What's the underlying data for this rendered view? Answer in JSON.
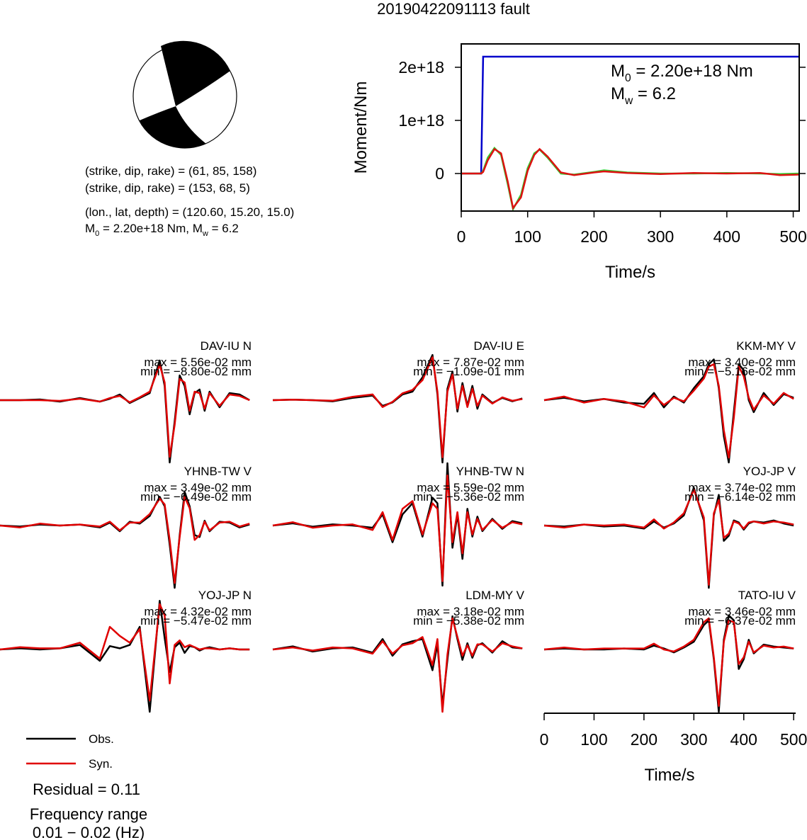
{
  "title": "20190422091113 fault",
  "mechanism": {
    "plane1": "(strike, dip, rake) = (61, 85, 158)",
    "plane2": "(strike, dip, rake) = (153, 68, 5)",
    "location": "(lon., lat, depth) = (120.60, 15.20, 15.0)",
    "magnitude": [
      {
        "symbol": "M",
        "sub": "0",
        "text": " = 2.20e+18 Nm, "
      },
      {
        "symbol": "M",
        "sub": "w",
        "text": " = 6.2"
      }
    ]
  },
  "chart_data": [
    {
      "type": "line",
      "xlabel": "Time/s",
      "ylabel": "Moment/Nm",
      "xlim": [
        0,
        509
      ],
      "xticks": [
        0,
        100,
        200,
        300,
        400,
        500
      ],
      "ylim": [
        -7.07e+17,
        2.44e+18
      ],
      "yticks": [
        0,
        {
          "value": 1e+18,
          "label": "1e+18"
        },
        {
          "value": 2e+18,
          "label": "2e+18"
        }
      ],
      "annotations": [
        {
          "symbol": "M",
          "sub": "0",
          "text": " = 2.20e+18 Nm"
        },
        {
          "symbol": "M",
          "sub": "w",
          "text": " = 6.2"
        }
      ],
      "x": [
        0,
        30,
        33,
        40,
        50,
        60,
        70,
        78,
        90,
        100,
        110,
        118,
        130,
        150,
        170,
        200,
        215,
        250,
        300,
        350,
        400,
        450,
        480,
        509
      ],
      "series": [
        {
          "color": "#0000cc",
          "values": [
            0,
            0,
            2.2e+18,
            2.2e+18,
            2.2e+18,
            2.2e+18,
            2.2e+18,
            2.2e+18,
            2.2e+18,
            2.2e+18,
            2.2e+18,
            2.2e+18,
            2.2e+18,
            2.2e+18,
            2.2e+18,
            2.2e+18,
            2.2e+18,
            2.2e+18,
            2.2e+18,
            2.2e+18,
            2.2e+18,
            2.2e+18,
            2.2e+18,
            2.2e+18
          ]
        },
        {
          "color": "#33cc33",
          "values": [
            0,
            0,
            5e+16,
            3e+17,
            4.8e+17,
            3.5e+17,
            -2e+17,
            -6.7e+17,
            -4e+17,
            1e+17,
            3.8e+17,
            4.5e+17,
            3e+17,
            0,
            -2e+16,
            3e+16,
            6e+16,
            2e+16,
            0,
            0,
            1e+16,
            0,
            -1e+16,
            0
          ]
        },
        {
          "color": "#dd1111",
          "values": [
            0,
            0,
            3e+16,
            2.5e+17,
            4.6e+17,
            3.8e+17,
            -1.5e+17,
            -6.5e+17,
            -4.5e+17,
            5e+16,
            3.5e+17,
            4.6e+17,
            3.2e+17,
            2e+16,
            -3e+16,
            2e+16,
            4e+16,
            1e+16,
            -1e+16,
            1e+16,
            0,
            1e+16,
            -3e+16,
            -2e+16
          ]
        }
      ]
    },
    {
      "type": "waveform",
      "xlabel": "Time/s",
      "xlim": [
        0,
        504
      ],
      "xticks": [
        0,
        100,
        200,
        300,
        400,
        500
      ],
      "x": [
        0,
        40,
        80,
        120,
        160,
        200,
        220,
        240,
        260,
        280,
        300,
        320,
        330,
        340,
        350,
        360,
        370,
        380,
        390,
        400,
        410,
        420,
        440,
        460,
        480,
        500
      ],
      "panels": [
        {
          "title": "DAV-IU N",
          "max_label": "max = 5.56e-02 mm",
          "min_label": "min = −8.80e-02 mm",
          "series": [
            {
              "name": "Obs.",
              "color": "#000000",
              "values": [
                0,
                0,
                0.001,
                -0.002,
                0.003,
                -0.002,
                0.002,
                0.008,
                -0.004,
                0.003,
                0.01,
                0.056,
                0.02,
                -0.088,
                -0.03,
                0.035,
                0.02,
                -0.02,
                0.01,
                0.015,
                -0.015,
                0.012,
                -0.01,
                0.01,
                0.008,
                0
              ]
            },
            {
              "name": "Syn.",
              "color": "#e00000",
              "values": [
                0,
                0,
                0,
                -0.001,
                0.002,
                -0.002,
                0.003,
                0.006,
                -0.003,
                0.004,
                0.012,
                0.05,
                0.025,
                -0.08,
                -0.035,
                0.03,
                0.025,
                -0.015,
                0.012,
                0.01,
                -0.012,
                0.01,
                -0.008,
                0.008,
                0.006,
                0
              ]
            }
          ]
        },
        {
          "title": "DAV-IU E",
          "max_label": "max = 7.87e-02 mm",
          "min_label": "min = −1.09e-01 mm",
          "series": [
            {
              "name": "Obs.",
              "color": "#000000",
              "values": [
                0,
                0.001,
                0,
                -0.002,
                0.004,
                0.008,
                -0.01,
                -0.004,
                0.01,
                0.015,
                0.04,
                0.079,
                0.01,
                -0.109,
                0.02,
                0.05,
                -0.02,
                0.03,
                -0.01,
                0.025,
                -0.015,
                0.01,
                -0.005,
                0.004,
                -0.002,
                0.003
              ]
            },
            {
              "name": "Syn.",
              "color": "#e00000",
              "values": [
                0,
                0.001,
                0,
                -0.001,
                0.006,
                0.01,
                -0.012,
                -0.003,
                0.012,
                0.018,
                0.035,
                0.075,
                0.015,
                -0.1,
                0.015,
                0.045,
                -0.015,
                0.025,
                -0.012,
                0.02,
                -0.01,
                0.008,
                -0.006,
                0.005,
                -0.001,
                0.002
              ]
            }
          ]
        },
        {
          "title": "KKM-MY V",
          "max_label": "max = 3.40e-02 mm",
          "min_label": "min = −5.16e-02 mm",
          "series": [
            {
              "name": "Obs.",
              "color": "#000000",
              "values": [
                0,
                0.002,
                -0.001,
                0.001,
                -0.002,
                -0.003,
                0.006,
                -0.006,
                0.003,
                -0.002,
                0.01,
                0.02,
                0.03,
                0.034,
                0.01,
                -0.03,
                -0.052,
                -0.01,
                0.03,
                0.025,
                0,
                -0.01,
                0.006,
                -0.004,
                0.005,
                0.002
              ]
            },
            {
              "name": "Syn.",
              "color": "#e00000",
              "values": [
                0,
                0.003,
                -0.002,
                0.001,
                -0.001,
                -0.006,
                0.004,
                -0.004,
                0.002,
                -0.001,
                0.008,
                0.018,
                0.028,
                0.03,
                0.012,
                -0.025,
                -0.048,
                -0.015,
                0.028,
                0.02,
                0.002,
                -0.008,
                0.004,
                -0.003,
                0.006,
                0.001
              ]
            }
          ]
        },
        {
          "title": "YHNB-TW V",
          "max_label": "max = 3.49e-02 mm",
          "min_label": "min = −6.49e-02 mm",
          "series": [
            {
              "name": "Obs.",
              "color": "#000000",
              "values": [
                0,
                -0.001,
                0.001,
                0,
                0.001,
                -0.002,
                0.003,
                -0.006,
                0.004,
                0.002,
                0.01,
                0.03,
                0.02,
                -0.02,
                -0.065,
                -0.01,
                0.035,
                0.02,
                -0.01,
                -0.012,
                0.005,
                -0.006,
                0.004,
                0.003,
                -0.002,
                0.001
              ]
            },
            {
              "name": "Syn.",
              "color": "#e00000",
              "values": [
                0,
                -0.002,
                0.002,
                0,
                0.001,
                -0.001,
                0.004,
                -0.005,
                0.003,
                0.003,
                0.012,
                0.028,
                0.022,
                -0.015,
                -0.06,
                -0.012,
                0.03,
                0.018,
                -0.015,
                -0.01,
                0.004,
                -0.005,
                0.003,
                0.004,
                -0.001,
                0.002
              ]
            }
          ]
        },
        {
          "title": "YHNB-TW N",
          "max_label": "max = 5.59e-02 mm",
          "min_label": "min = −5.36e-02 mm",
          "series": [
            {
              "name": "Obs.",
              "color": "#000000",
              "values": [
                0,
                0.002,
                -0.001,
                0.001,
                0,
                -0.002,
                0.01,
                -0.015,
                0.01,
                0.02,
                -0.01,
                0.025,
                0.02,
                -0.054,
                0.056,
                -0.02,
                0.01,
                -0.03,
                0.015,
                -0.01,
                0.008,
                -0.005,
                0.006,
                -0.003,
                0.004,
                0.002
              ]
            },
            {
              "name": "Syn.",
              "color": "#e00000",
              "values": [
                0,
                0.003,
                -0.002,
                0,
                0.001,
                -0.004,
                0.012,
                -0.013,
                0.015,
                0.022,
                -0.008,
                0.02,
                0.015,
                -0.05,
                0.045,
                -0.015,
                0.012,
                -0.025,
                0.012,
                -0.008,
                0.006,
                -0.004,
                0.005,
                -0.002,
                0.003,
                0.001
              ]
            }
          ]
        },
        {
          "title": "YOJ-JP V",
          "max_label": "max = 3.74e-02 mm",
          "min_label": "min = −6.14e-02 mm",
          "series": [
            {
              "name": "Obs.",
              "color": "#000000",
              "values": [
                0,
                -0.001,
                0.001,
                -0.001,
                0,
                -0.003,
                0.004,
                -0.002,
                0.002,
                0.01,
                0.037,
                0.005,
                -0.061,
                0.01,
                0.03,
                -0.015,
                -0.01,
                0.005,
                0.003,
                -0.004,
                0.002,
                0.004,
                0.003,
                0.005,
                0.002,
                0
              ]
            },
            {
              "name": "Syn.",
              "color": "#e00000",
              "values": [
                0,
                -0.002,
                0.001,
                0,
                0.001,
                -0.002,
                0.006,
                -0.003,
                0.003,
                0.012,
                0.035,
                0.008,
                -0.058,
                0.012,
                0.025,
                -0.012,
                -0.008,
                0.004,
                0.002,
                -0.003,
                0.003,
                0.004,
                0.002,
                0.004,
                0.003,
                0.001
              ]
            }
          ]
        },
        {
          "title": "YOJ-JP N",
          "max_label": "max = 4.32e-02 mm",
          "min_label": "min = −5.47e-02 mm",
          "series": [
            {
              "name": "Obs.",
              "color": "#000000",
              "values": [
                0,
                0.001,
                0,
                0.001,
                0.004,
                -0.01,
                0.003,
                0.001,
                0.004,
                0.02,
                -0.055,
                0.043,
                0.01,
                -0.02,
                0.002,
                0.006,
                -0.003,
                0.003,
                0.002,
                -0.001,
                0.001,
                0.002,
                0,
                0.001,
                0,
                0
              ]
            },
            {
              "name": "Syn.",
              "color": "#e00000",
              "values": [
                0,
                0.002,
                0.001,
                0.001,
                0.006,
                -0.008,
                0.02,
                0.012,
                0.006,
                0.018,
                -0.045,
                0.04,
                0.03,
                -0.03,
                0.004,
                0.008,
                0.002,
                0.004,
                0.002,
                0,
                0.001,
                0.001,
                0,
                0.001,
                0,
                0
              ]
            }
          ]
        },
        {
          "title": "LDM-MY V",
          "max_label": "max = 3.18e-02 mm",
          "min_label": "min = −5.38e-02 mm",
          "series": [
            {
              "name": "Obs.",
              "color": "#000000",
              "values": [
                0,
                0.003,
                -0.002,
                0.001,
                0.002,
                -0.003,
                0.01,
                -0.006,
                0.005,
                0.008,
                0.01,
                -0.02,
                0.005,
                -0.054,
                -0.01,
                0.032,
                0.01,
                -0.01,
                0.006,
                -0.008,
                0.004,
                0.006,
                -0.003,
                0.008,
                0.002,
                0.001
              ]
            },
            {
              "name": "Syn.",
              "color": "#e00000",
              "values": [
                0,
                0.002,
                -0.001,
                0.002,
                0.001,
                -0.004,
                0.008,
                -0.004,
                0.004,
                0.006,
                0.012,
                -0.015,
                0.01,
                -0.06,
                -0.005,
                0.03,
                0.012,
                -0.006,
                0.004,
                -0.006,
                0.005,
                0.005,
                -0.002,
                0.006,
                0.003,
                0.001
              ]
            }
          ]
        },
        {
          "title": "TATO-IU V",
          "max_label": "max = 3.46e-02 mm",
          "min_label": "min = −6.37e-02 mm",
          "series": [
            {
              "name": "Obs.",
              "color": "#000000",
              "values": [
                0,
                0.001,
                0,
                0,
                0.001,
                0,
                0.004,
                0.001,
                -0.003,
                0.002,
                0.008,
                0.025,
                0.03,
                -0.01,
                -0.064,
                0.01,
                0.035,
                0.03,
                -0.02,
                -0.01,
                0.01,
                -0.004,
                0.005,
                0.003,
                0.002,
                0.001
              ]
            },
            {
              "name": "Syn.",
              "color": "#e00000",
              "values": [
                0,
                0.002,
                0,
                0.001,
                0.001,
                0.001,
                0.006,
                0,
                -0.002,
                0.003,
                0.01,
                0.028,
                0.032,
                -0.008,
                -0.058,
                0.008,
                0.03,
                0.028,
                -0.015,
                -0.008,
                0.008,
                -0.003,
                0.004,
                0.002,
                0.003,
                0.001
              ]
            }
          ]
        }
      ]
    }
  ],
  "notes": {
    "residual": "Residual = 0.11",
    "freq_title": "Frequency range",
    "freq_range": "0.01 − 0.02 (Hz)"
  }
}
